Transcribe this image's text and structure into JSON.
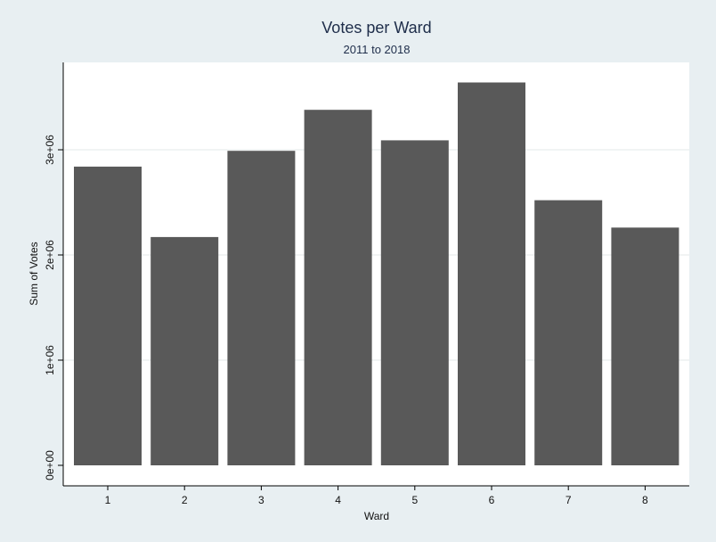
{
  "chart_data": {
    "type": "bar",
    "title": "Votes per Ward",
    "subtitle": "2011 to  2018",
    "xlabel": "Ward",
    "ylabel": "Sum of Votes",
    "categories": [
      "1",
      "2",
      "3",
      "4",
      "5",
      "6",
      "7",
      "8"
    ],
    "values": [
      2840000,
      2170000,
      2990000,
      3380000,
      3090000,
      3640000,
      2520000,
      2260000
    ],
    "ylim": [
      0,
      3800000
    ],
    "yticks": [
      {
        "value": 0,
        "label": "0e+00"
      },
      {
        "value": 1000000,
        "label": "1e+06"
      },
      {
        "value": 2000000,
        "label": "2e+06"
      },
      {
        "value": 3000000,
        "label": "3e+06"
      }
    ],
    "grid": true,
    "legend": "none",
    "colors": {
      "bar": "#595959",
      "background": "#e8eff2",
      "plot_background": "#ffffff",
      "grid": "#e3e8ea",
      "title": "#1e2d4a"
    }
  }
}
